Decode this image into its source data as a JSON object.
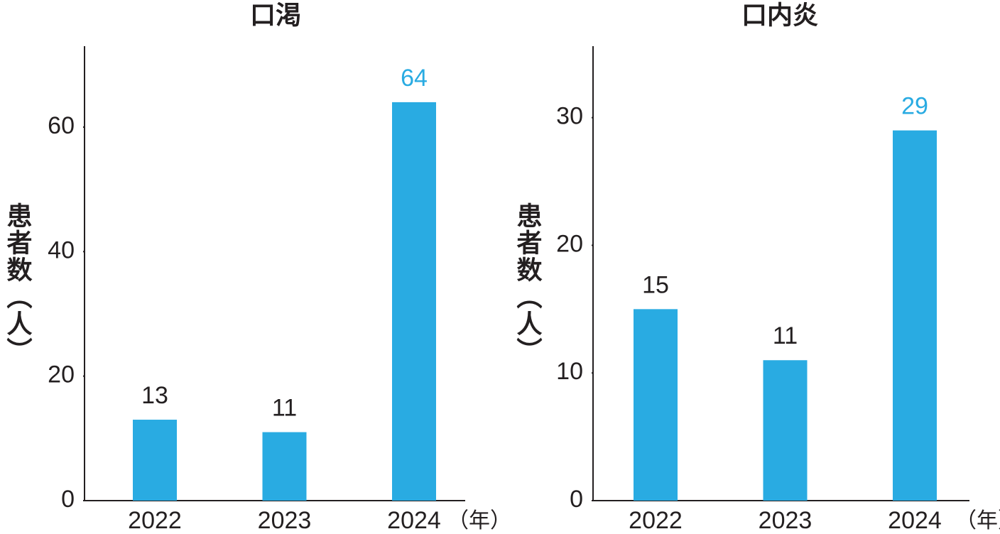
{
  "chart_data": [
    {
      "type": "bar",
      "title": "口渇",
      "y_label": "患者数（人）",
      "x_label": "（年）",
      "categories": [
        "2022",
        "2023",
        "2024"
      ],
      "values": [
        13,
        11,
        64
      ],
      "color": "#29abe2",
      "label_colors": [
        "#231f20",
        "#231f20",
        "#29abe2"
      ],
      "ylim": [
        0,
        73
      ],
      "yticks": [
        0,
        20,
        40,
        60
      ]
    },
    {
      "type": "bar",
      "title": "口内炎",
      "y_label": "患者数（人）",
      "x_label": "（年）",
      "categories": [
        "2022",
        "2023",
        "2024"
      ],
      "values": [
        15,
        11,
        29
      ],
      "color": "#29abe2",
      "label_colors": [
        "#231f20",
        "#231f20",
        "#29abe2"
      ],
      "ylim": [
        0,
        35.6
      ],
      "yticks": [
        0,
        10,
        20,
        30
      ]
    }
  ]
}
